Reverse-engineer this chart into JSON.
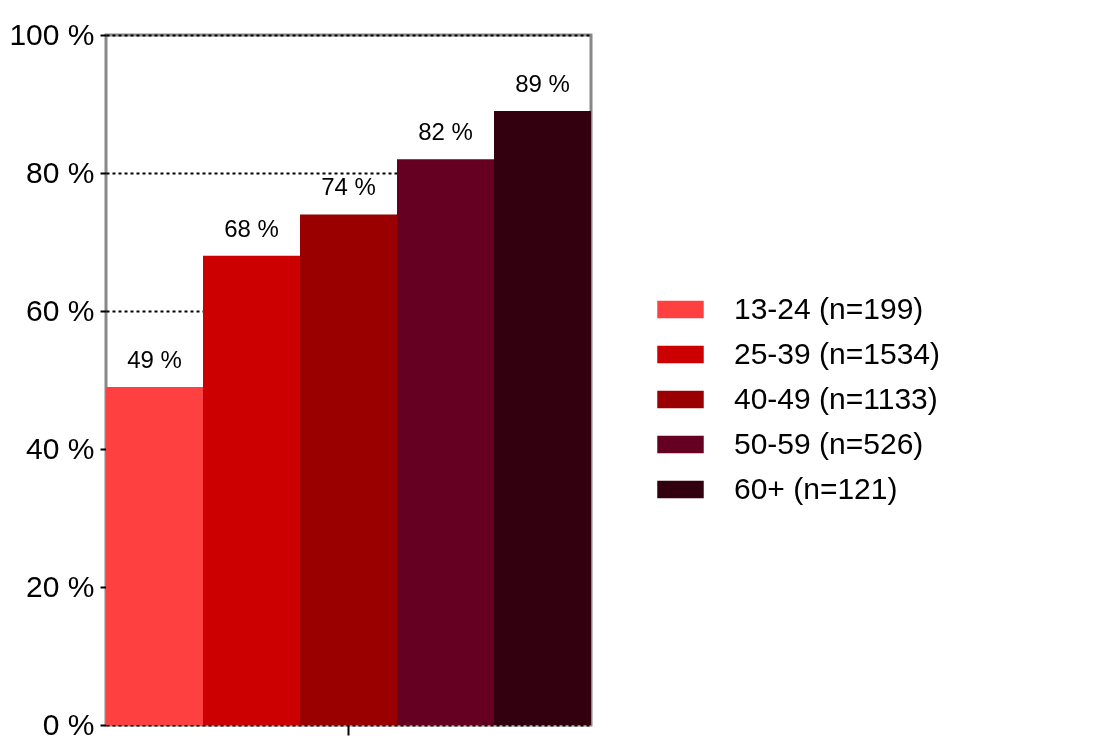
{
  "chart_data": {
    "type": "bar",
    "categories": [
      null
    ],
    "series": [
      {
        "name": "13-24 (n=199)",
        "color": "#fe4040",
        "values": [
          49
        ],
        "value_labels": [
          "49 %"
        ]
      },
      {
        "name": "25-39 (n=1534)",
        "color": "#cc0000",
        "values": [
          68
        ],
        "value_labels": [
          "68 %"
        ]
      },
      {
        "name": "40-49 (n=1133)",
        "color": "#9a0000",
        "values": [
          74
        ],
        "value_labels": [
          "74 %"
        ]
      },
      {
        "name": "50-59 (n=526)",
        "color": "#660022",
        "values": [
          82
        ],
        "value_labels": [
          "82 %"
        ]
      },
      {
        "name": "60+ (n=121)",
        "color": "#330010",
        "values": [
          89
        ],
        "value_labels": [
          "89 %"
        ]
      }
    ],
    "ylim": [
      0,
      100
    ],
    "yticks": [
      {
        "value": 0,
        "label": "0 %"
      },
      {
        "value": 20,
        "label": "20 %"
      },
      {
        "value": 40,
        "label": "40 %"
      },
      {
        "value": 60,
        "label": "60 %"
      },
      {
        "value": 80,
        "label": "80 %"
      },
      {
        "value": 100,
        "label": "100 %"
      }
    ],
    "grid": "y",
    "line_style": "dotted",
    "legend": "right"
  }
}
